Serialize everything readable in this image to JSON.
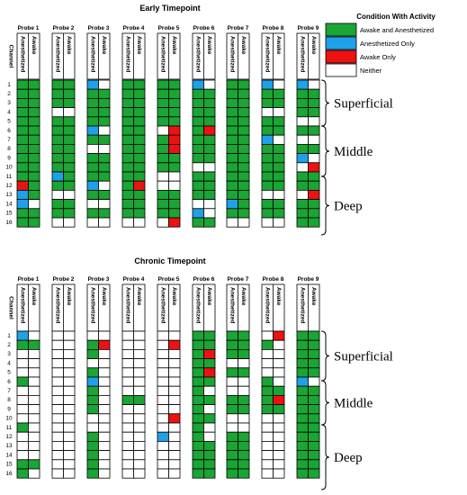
{
  "chart_data": [
    {
      "type": "table",
      "title": "Early Timepoint",
      "probes": [
        "Probe 1",
        "Probe 2",
        "Probe 3",
        "Probe 4",
        "Probe 5",
        "Probe 6",
        "Probe 7",
        "Probe 8",
        "Probe 9"
      ],
      "columns": [
        "Anesthetized",
        "Awake"
      ],
      "row_header": "Channel",
      "channels": [
        "1",
        "2",
        "3",
        "4",
        "5",
        "6",
        "7",
        "8",
        "9",
        "10",
        "11",
        "12",
        "13",
        "14",
        "15",
        "16"
      ],
      "cell_code": {
        "G": "Awake and Anesthetized",
        "B": "Anesthetized Only",
        "R": "Awake Only",
        "W": "Neither"
      },
      "cells": [
        [
          "GG",
          "GG",
          "GG",
          "GG",
          "GG",
          "GG",
          "GG",
          "GG",
          "GG",
          "GG",
          "GG",
          "RG",
          "BG",
          "BW",
          "GG",
          "GG"
        ],
        [
          "GG",
          "GG",
          "GG",
          "WW",
          "GG",
          "GG",
          "GG",
          "GG",
          "GG",
          "GG",
          "BG",
          "GG",
          "WW",
          "GG",
          "GG",
          "WW"
        ],
        [
          "BW",
          "GG",
          "GG",
          "GG",
          "GG",
          "BW",
          "GG",
          "WW",
          "GG",
          "GG",
          "GG",
          "BW",
          "GG",
          "WW",
          "GG",
          "WW"
        ],
        [
          "GG",
          "GG",
          "GG",
          "GG",
          "GG",
          "GG",
          "GG",
          "GG",
          "GG",
          "GG",
          "GG",
          "GR",
          "GG",
          "GG",
          "GG",
          "WW"
        ],
        [
          "GG",
          "GG",
          "GG",
          "GG",
          "GG",
          "WR",
          "GR",
          "GR",
          "GG",
          "GG",
          "WW",
          "WW",
          "GG",
          "GG",
          "GG",
          "WR"
        ],
        [
          "BW",
          "GG",
          "GG",
          "GG",
          "GG",
          "GR",
          "GG",
          "GG",
          "GG",
          "WW",
          "GG",
          "GG",
          "GG",
          "WW",
          "BW",
          "GG"
        ],
        [
          "GG",
          "GG",
          "GG",
          "GG",
          "GG",
          "GG",
          "GG",
          "GG",
          "GG",
          "GG",
          "GG",
          "GG",
          "GG",
          "BG",
          "GG",
          "WW"
        ],
        [
          "BW",
          "GG",
          "GG",
          "WW",
          "GG",
          "GG",
          "BW",
          "GG",
          "GG",
          "GG",
          "GG",
          "GG",
          "WW",
          "GG",
          "GG",
          "WW"
        ],
        [
          "BW",
          "GG",
          "GG",
          "GG",
          "WW",
          "GG",
          "WW",
          "GG",
          "BW",
          "WR",
          "GG",
          "GG",
          "WR",
          "GG",
          "GG",
          "GG"
        ]
      ],
      "regions": [
        "Superficial",
        "Middle",
        "Deep"
      ],
      "legend": {
        "title": "Condition With Activity",
        "entries": [
          {
            "code": "G",
            "label": "Awake and Anesthetized",
            "color": "#1aa535"
          },
          {
            "code": "B",
            "label": "Anesthetized Only",
            "color": "#1ea1e8"
          },
          {
            "code": "R",
            "label": "Awake Only",
            "color": "#ee1111"
          },
          {
            "code": "W",
            "label": "Neither",
            "color": "#ffffff"
          }
        ]
      }
    },
    {
      "type": "table",
      "title": "Chronic Timepoint",
      "probes": [
        "Probe 1",
        "Probe 2",
        "Probe 3",
        "Probe 4",
        "Probe 5",
        "Probe 6",
        "Probe 7",
        "Probe 8",
        "Probe 9"
      ],
      "columns": [
        "Anesthetized",
        "Awake"
      ],
      "row_header": "Channel",
      "channels": [
        "1",
        "2",
        "3",
        "4",
        "5",
        "6",
        "7",
        "8",
        "9",
        "10",
        "11",
        "12",
        "13",
        "14",
        "15",
        "16"
      ],
      "cell_code": {
        "G": "Awake and Anesthetized",
        "B": "Anesthetized Only",
        "R": "Awake Only",
        "W": "Neither"
      },
      "cells": [
        [
          "BW",
          "GG",
          "WW",
          "WW",
          "WW",
          "GW",
          "WW",
          "WW",
          "WW",
          "WW",
          "GW",
          "WW",
          "WW",
          "WW",
          "GG",
          "GW"
        ],
        [
          "WW",
          "WW",
          "WW",
          "WW",
          "WW",
          "WW",
          "WW",
          "WW",
          "WW",
          "WW",
          "WW",
          "WW",
          "WW",
          "WW",
          "WW",
          "WW"
        ],
        [
          "WW",
          "GR",
          "GW",
          "WW",
          "GW",
          "BW",
          "GW",
          "GW",
          "GW",
          "WW",
          "WW",
          "GW",
          "GW",
          "GW",
          "GW",
          "GW"
        ],
        [
          "WW",
          "WW",
          "WW",
          "WW",
          "WW",
          "WW",
          "WW",
          "GG",
          "WW",
          "WW",
          "WW",
          "WW",
          "WW",
          "WW",
          "WW",
          "WW"
        ],
        [
          "WW",
          "WR",
          "WW",
          "WW",
          "WW",
          "WW",
          "WW",
          "WW",
          "WW",
          "WR",
          "WW",
          "BW",
          "WW",
          "WW",
          "WW",
          "WW"
        ],
        [
          "GG",
          "GG",
          "GR",
          "GG",
          "GR",
          "GG",
          "GW",
          "GG",
          "GW",
          "GG",
          "GW",
          "GW",
          "GG",
          "GG",
          "GG",
          "GG"
        ],
        [
          "GG",
          "GG",
          "GG",
          "WW",
          "GG",
          "WW",
          "WW",
          "GG",
          "GG",
          "WW",
          "WW",
          "GG",
          "GG",
          "GG",
          "GG",
          "GG"
        ],
        [
          "WR",
          "GW",
          "WW",
          "WW",
          "WW",
          "GW",
          "GG",
          "GR",
          "GG",
          "WW",
          "WW",
          "WW",
          "WW",
          "WW",
          "WW",
          "WW"
        ],
        [
          "GG",
          "GG",
          "GG",
          "GG",
          "GG",
          "BW",
          "GG",
          "GG",
          "GG",
          "GG",
          "GG",
          "GG",
          "GG",
          "GG",
          "GG",
          "GG"
        ]
      ],
      "regions": [
        "Superficial",
        "Middle",
        "Deep"
      ]
    }
  ]
}
